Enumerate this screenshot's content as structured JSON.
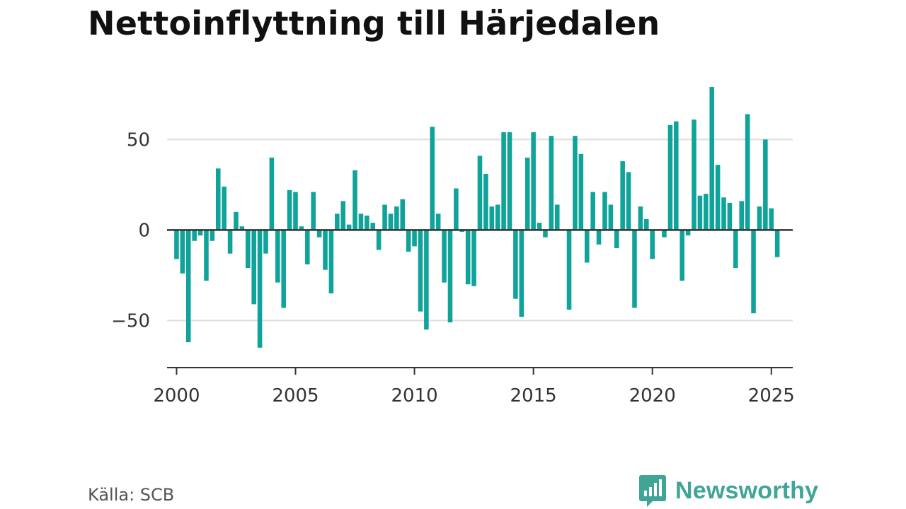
{
  "title": "Nettoinflyttning till Härjedalen",
  "source": "Källa: SCB",
  "brand": {
    "name": "Newsworthy",
    "color": "#3fa597",
    "icon": "newsworthy-logo-icon"
  },
  "colors": {
    "bar": "#0fa399",
    "zero_line": "#333333",
    "grid": "#dddddd",
    "axis": "#333333"
  },
  "chart_data": {
    "type": "bar",
    "title": "Nettoinflyttning till Härjedalen",
    "xlabel": "",
    "ylabel": "",
    "grid": true,
    "frequency": "quarterly",
    "x_start": "2000-Q1",
    "xlim": [
      1999.6,
      2025.9
    ],
    "ylim": [
      -76,
      88
    ],
    "x_ticks": [
      2000,
      2005,
      2010,
      2015,
      2020,
      2025
    ],
    "x_tick_labels": [
      "2000",
      "2005",
      "2010",
      "2015",
      "2020",
      "2025"
    ],
    "y_ticks": [
      -50,
      0,
      50
    ],
    "y_tick_labels": [
      "−50",
      "0",
      "50"
    ],
    "values": [
      -16,
      -24,
      -62,
      -6,
      -3,
      -28,
      -6,
      34,
      24,
      -13,
      10,
      2,
      -21,
      -41,
      -65,
      -13,
      40,
      -29,
      -43,
      22,
      21,
      2,
      -19,
      21,
      -4,
      -22,
      -35,
      9,
      16,
      3,
      33,
      9,
      8,
      4,
      -11,
      14,
      9,
      13,
      17,
      -12,
      -9,
      -45,
      -55,
      57,
      9,
      -29,
      -51,
      23,
      -1,
      -30,
      -31,
      41,
      31,
      13,
      14,
      54,
      54,
      -38,
      -48,
      40,
      54,
      4,
      -4,
      52,
      14,
      0,
      -44,
      52,
      42,
      -18,
      21,
      -8,
      21,
      14,
      -10,
      38,
      32,
      -43,
      13,
      6,
      -16,
      0,
      -4,
      58,
      60,
      -28,
      -3,
      61,
      19,
      20,
      79,
      36,
      18,
      15,
      -21,
      16,
      64,
      -46,
      13,
      50,
      12,
      -15
    ]
  }
}
